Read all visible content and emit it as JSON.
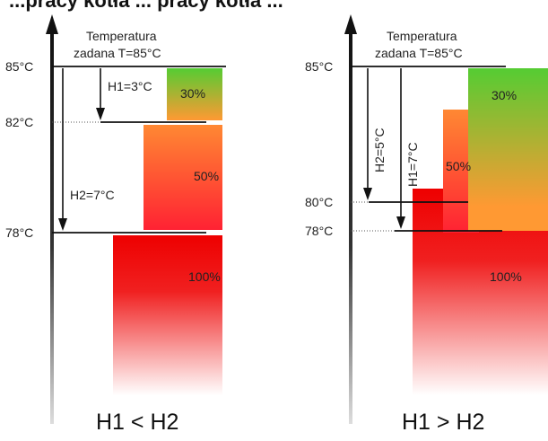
{
  "top_clipped_text": "...pracy kotła ... pracy kotła ...",
  "left": {
    "setpoint_label_line1": "Temperatura",
    "setpoint_label_line2": "zadana T=85°C",
    "y_labels": [
      "85°C",
      "82°C",
      "78°C"
    ],
    "h1_label": "H1=3°C",
    "h2_label": "H2=7°C",
    "levels": [
      "30%",
      "50%",
      "100%"
    ],
    "caption": "H1 < H2"
  },
  "right": {
    "setpoint_label_line1": "Temperatura",
    "setpoint_label_line2": "zadana T=85°C",
    "y_labels": [
      "85°C",
      "80°C",
      "78°C"
    ],
    "h2_label": "H2=5°C",
    "h1_label": "H1=7°C",
    "levels": [
      "30%",
      "50%",
      "100%"
    ],
    "caption": "H1 > H2"
  },
  "colors": {
    "green": "#66cc33",
    "orange": "#ff9933",
    "red": "#ee1111",
    "axis": "#222222"
  }
}
